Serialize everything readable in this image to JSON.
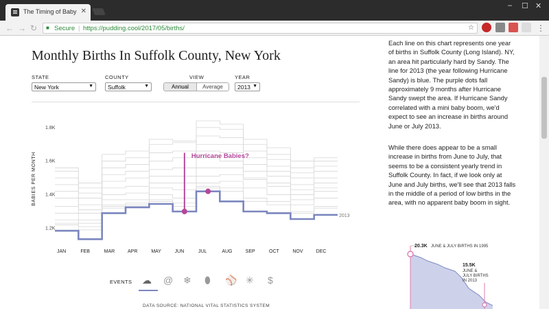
{
  "browser": {
    "tab_title": "The Timing of Baby Maki",
    "security_label": "Secure",
    "url": "https://pudding.cool/2017/05/births/"
  },
  "page": {
    "title": "Monthly Births In Suffolk County, New York",
    "controls": {
      "state_label": "STATE",
      "state_value": "New York",
      "county_label": "COUNTY",
      "county_value": "Suffolk",
      "view_label": "VIEW",
      "view_options": [
        "Annual",
        "Average"
      ],
      "view_selected": "Annual",
      "year_label": "YEAR",
      "year_value": "2013"
    },
    "events_label": "EVENTS",
    "events_icons": [
      "hurricane-icon",
      "swirl-icon",
      "snowflake-icon",
      "football-icon",
      "baseball-icon",
      "fireworks-icon",
      "dollar-icon"
    ],
    "data_source": "DATA SOURCE: NATIONAL VITAL STATISTICS SYSTEM",
    "paragraphs": [
      "Each line on this chart represents one year of births in Suffolk County (Long Island). NY, an area hit particularly hard by Sandy. The line for 2013 (the year following Hurricane Sandy) is blue. The purple dots fall approximately 9 months after Hurricane Sandy swept the area. If Hurricane Sandy correlated with a mini baby boom, we'd expect to see an increase in births around June or July 2013.",
      "While there does appear to be a small increase in births from June to July, that seems to be a consistent yearly trend in Suffolk County. In fact, if we look only at June and July births, we'll see that 2013 falls in the middle of a period of low births in the area, with no apparent baby boom in sight."
    ],
    "mini_chart": {
      "top_value": "20.3K",
      "top_label": "JUNE & JULY BIRTHS IN 1995",
      "low_value": "15.5K",
      "low_label_lines": [
        "JUNE &",
        "JULY BIRTHS",
        "IN 2013"
      ]
    }
  },
  "colors": {
    "highlight_line": "#7b86bf",
    "annotation": "#b5479a",
    "background_lines": "#d6d6d6"
  },
  "chart_data": {
    "type": "line",
    "title": "Monthly Births In Suffolk County, New York",
    "ylabel": "BABIES PER MONTH",
    "xlabel": "",
    "categories": [
      "JAN",
      "FEB",
      "MAR",
      "APR",
      "MAY",
      "JUN",
      "JUL",
      "AUG",
      "SEP",
      "OCT",
      "NOV",
      "DEC"
    ],
    "yticks": [
      "1.2K",
      "1.4K",
      "1.6K",
      "1.8K"
    ],
    "ytick_values": [
      1200,
      1400,
      1600,
      1800
    ],
    "ylim": [
      1120,
      1840
    ],
    "series": [
      {
        "name": "2013",
        "values": [
          1185,
          1135,
          1290,
          1325,
          1345,
          1300,
          1420,
          1360,
          1300,
          1290,
          1255,
          1280
        ]
      }
    ],
    "background_series": [
      [
        1290,
        1250,
        1370,
        1370,
        1440,
        1430,
        1510,
        1520,
        1490,
        1450,
        1370,
        1420
      ],
      [
        1330,
        1290,
        1400,
        1410,
        1470,
        1470,
        1560,
        1560,
        1500,
        1470,
        1400,
        1440
      ],
      [
        1380,
        1310,
        1440,
        1450,
        1510,
        1510,
        1620,
        1600,
        1540,
        1510,
        1430,
        1470
      ],
      [
        1420,
        1340,
        1480,
        1500,
        1550,
        1560,
        1660,
        1650,
        1580,
        1540,
        1460,
        1500
      ],
      [
        1460,
        1380,
        1520,
        1540,
        1600,
        1620,
        1700,
        1700,
        1620,
        1570,
        1500,
        1540
      ],
      [
        1500,
        1410,
        1560,
        1580,
        1650,
        1660,
        1750,
        1740,
        1660,
        1610,
        1530,
        1570
      ],
      [
        1540,
        1440,
        1600,
        1620,
        1700,
        1710,
        1800,
        1790,
        1700,
        1640,
        1560,
        1600
      ],
      [
        1560,
        1470,
        1640,
        1660,
        1730,
        1720,
        1840,
        1820,
        1730,
        1680,
        1600,
        1620
      ],
      [
        1250,
        1230,
        1340,
        1350,
        1400,
        1380,
        1470,
        1480,
        1440,
        1400,
        1340,
        1380
      ],
      [
        1220,
        1190,
        1320,
        1340,
        1370,
        1330,
        1440,
        1440,
        1380,
        1360,
        1300,
        1330
      ],
      [
        1230,
        1210,
        1330,
        1330,
        1360,
        1350,
        1450,
        1420,
        1360,
        1340,
        1290,
        1320
      ]
    ],
    "dots": [
      {
        "month": "JUN",
        "value": 1300
      },
      {
        "month": "JUL",
        "value": 1420
      }
    ],
    "annotation": "Hurricane Babies?",
    "series_label": "2013",
    "grid": false
  }
}
